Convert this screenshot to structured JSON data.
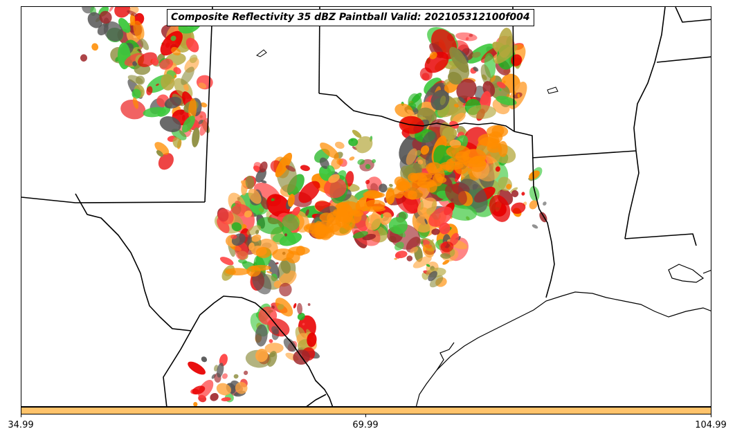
{
  "title": "Composite Reflectivity 35 dBZ Paintball Valid: 202105312100f004",
  "colorbar": {
    "color": "#ffc36b",
    "ticks": [
      "34.99",
      "69.99",
      "104.99"
    ]
  },
  "paintball_palette": [
    "#ff8c00",
    "#e80000",
    "#22b422",
    "#a0262a",
    "#8c8c3c",
    "#ffa640",
    "#555555",
    "#b4a83c",
    "#ff4040",
    "#3cc83c"
  ]
}
